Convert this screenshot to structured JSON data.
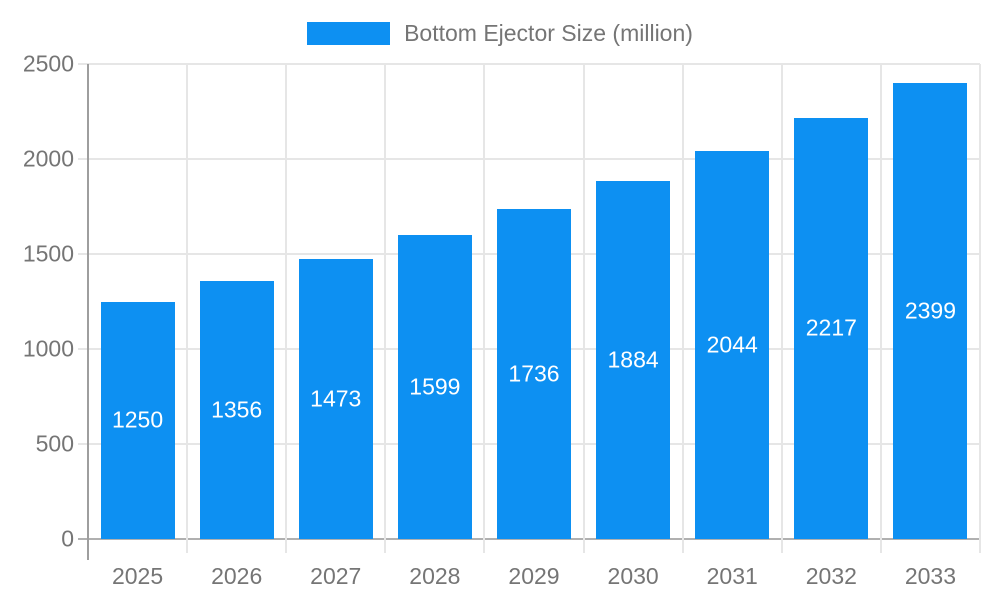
{
  "legend": {
    "label": "Bottom Ejector Size (million)"
  },
  "chart_data": {
    "type": "bar",
    "title": "Bottom Ejector Size (million)",
    "categories": [
      "2025",
      "2026",
      "2027",
      "2028",
      "2029",
      "2030",
      "2031",
      "2032",
      "2033"
    ],
    "values": [
      1250,
      1356,
      1473,
      1599,
      1736,
      1884,
      2044,
      2217,
      2399
    ],
    "series": [
      {
        "name": "Bottom Ejector Size (million)",
        "values": [
          1250,
          1356,
          1473,
          1599,
          1736,
          1884,
          2044,
          2217,
          2399
        ]
      }
    ],
    "xlabel": "",
    "ylabel": "",
    "ylim": [
      0,
      2500
    ],
    "yticks": [
      0,
      500,
      1000,
      1500,
      2000,
      2500
    ],
    "grid": true,
    "legend_position": "top",
    "value_labels": "inside-center"
  },
  "colors": {
    "bar": "#0d90f2",
    "value_label": "#ffffff",
    "axis_text": "#757575",
    "grid_line": "#e6e6e6",
    "axis_line": "#9e9e9e",
    "zero_line": "#b0b0b0",
    "background": "#ffffff"
  }
}
